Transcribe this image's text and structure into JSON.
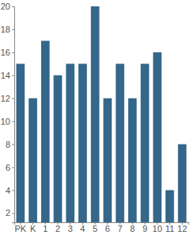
{
  "chart_data": {
    "type": "bar",
    "categories": [
      "PK",
      "K",
      "1",
      "2",
      "3",
      "4",
      "5",
      "6",
      "7",
      "8",
      "9",
      "10",
      "11",
      "12"
    ],
    "values": [
      15,
      12,
      17,
      14,
      15,
      15,
      20,
      12,
      15,
      12,
      15,
      16,
      4,
      8
    ],
    "color": "#34678a",
    "ylim": [
      1.2,
      20
    ],
    "yticks": [
      2,
      4,
      6,
      8,
      10,
      12,
      14,
      16,
      18,
      20
    ],
    "grid": false
  }
}
